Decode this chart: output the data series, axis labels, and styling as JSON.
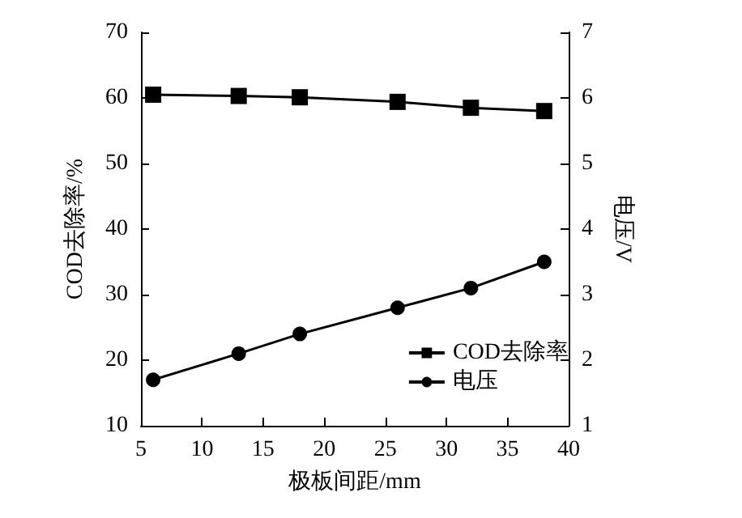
{
  "chart_data": {
    "type": "line",
    "xlabel": "极板间距/mm",
    "ylabel": "COD去除率/%",
    "y2label": "电压/V",
    "x": [
      6,
      13,
      18,
      26,
      32,
      38
    ],
    "series": [
      {
        "name": "COD去除率",
        "color": "#000000",
        "marker": "square",
        "values": [
          60.5,
          60.3,
          60.1,
          59.4,
          58.5,
          58.0
        ]
      },
      {
        "name": "电压",
        "color": "#000000",
        "marker": "circle",
        "axis": "y2",
        "values": [
          1.7,
          2.1,
          2.4,
          2.8,
          3.1,
          3.5
        ]
      }
    ],
    "xlim": [
      5,
      40
    ],
    "xticks": [
      5,
      10,
      15,
      20,
      25,
      30,
      35,
      40
    ],
    "ylim": [
      10,
      70
    ],
    "yticks": [
      10,
      20,
      30,
      40,
      50,
      60,
      70
    ],
    "y2lim": [
      1,
      7
    ],
    "y2ticks": [
      1,
      2,
      3,
      4,
      5,
      6,
      7
    ],
    "grid": false,
    "legend": "bottom right",
    "line_style": "solid"
  }
}
